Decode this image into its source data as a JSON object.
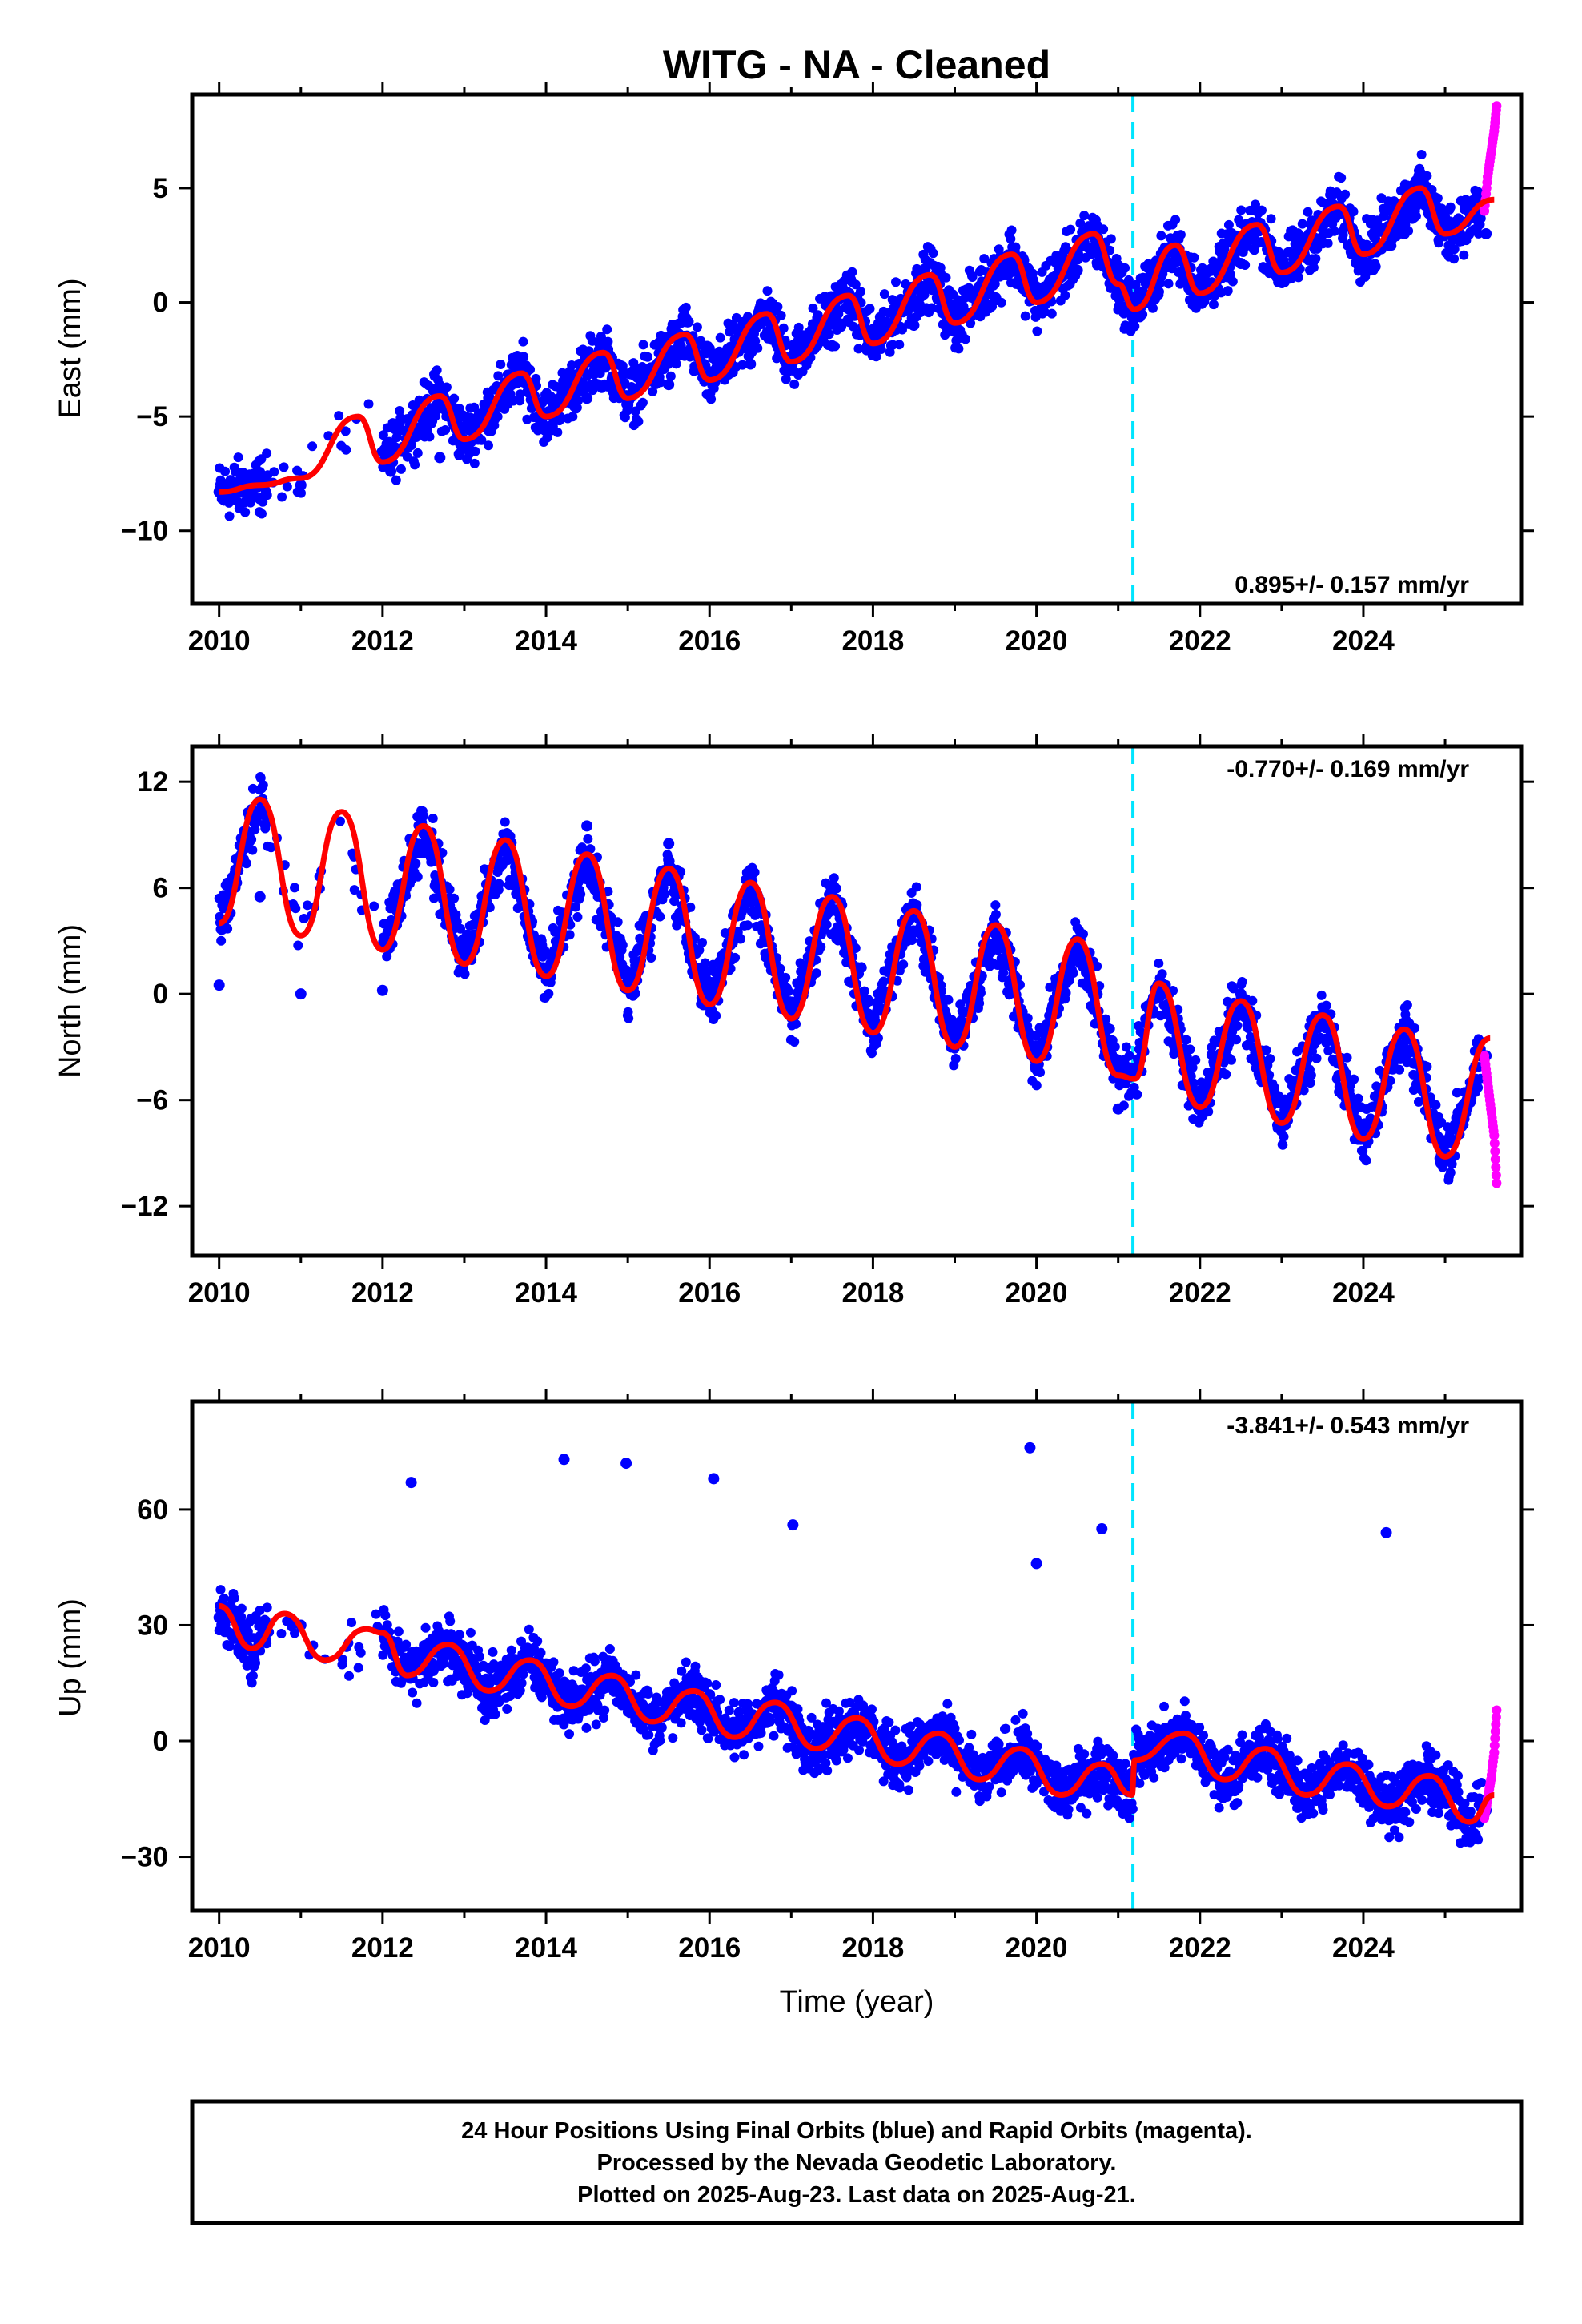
{
  "figure": {
    "title": "WITG  - NA - Cleaned",
    "xlabel": "Time (year)",
    "footer": [
      "24 Hour Positions Using Final Orbits (blue) and Rapid Orbits (magenta).",
      "Processed by the Nevada Geodetic Laboratory.",
      "Plotted on 2025-Aug-23. Last data on 2025-Aug-21."
    ],
    "colors": {
      "final_orbits": "#0000ff",
      "rapid_orbits": "#ff00ff",
      "model_fit": "#ff0000",
      "equipment_change": "#00e5ff"
    }
  },
  "chart_data": [
    {
      "type": "scatter",
      "panel": "east",
      "ylabel": "East (mm)",
      "rate_label": "0.895+/- 0.157 mm/yr",
      "rate_position": "bottom-right",
      "xlim": [
        2009.67,
        2025.93
      ],
      "ylim": [
        -13.2,
        9.1
      ],
      "xticks": [
        2010,
        2012,
        2014,
        2016,
        2018,
        2020,
        2022,
        2024
      ],
      "xtick_labels": [
        "2010",
        "2012",
        "2014",
        "2016",
        "2018",
        "2020",
        "2022",
        "2024"
      ],
      "yticks": [
        5,
        0,
        -5,
        -10
      ],
      "ytick_labels": [
        "5",
        "0",
        "−5",
        "−10"
      ],
      "equipment_change_x": 2021.18,
      "rapid_x_range": [
        2025.46,
        2025.64
      ],
      "series": [
        {
          "series_role": "final_orbits",
          "x": [
            2010.0,
            2010.5,
            2011.0,
            2012.1,
            2012.7,
            2013.3,
            2014.0,
            2014.5,
            2015.0,
            2015.5,
            2016.0,
            2016.5,
            2017.0,
            2017.5,
            2018.0,
            2018.5,
            2019.0,
            2019.5,
            2020.0,
            2020.5,
            2021.0,
            2021.5,
            2022.0,
            2022.5,
            2023.0,
            2023.5,
            2024.0,
            2024.5,
            2025.0,
            2025.5
          ],
          "y": [
            -8.3,
            -8.6,
            -8.0,
            -7.4,
            -6.8,
            -5.6,
            -4.9,
            -4.2,
            -4.5,
            -3.6,
            -3.2,
            -2.7,
            -2.8,
            -1.9,
            -1.6,
            -1.0,
            -0.6,
            0.2,
            0.4,
            1.4,
            1.6,
            0.9,
            1.0,
            1.7,
            1.9,
            2.6,
            2.4,
            3.0,
            3.0,
            3.0
          ]
        },
        {
          "series_role": "rapid_orbits",
          "x": [
            2025.48,
            2025.52,
            2025.56,
            2025.6,
            2025.63
          ],
          "y": [
            4.0,
            5.5,
            6.5,
            7.5,
            8.6
          ]
        },
        {
          "series_role": "model_fit",
          "x": [
            2010.0,
            2010.5,
            2011.0,
            2011.7,
            2012.0,
            2012.7,
            2013.0,
            2013.7,
            2014.0,
            2014.7,
            2015.0,
            2015.7,
            2016.0,
            2016.7,
            2017.0,
            2017.7,
            2018.0,
            2018.7,
            2019.0,
            2019.7,
            2020.0,
            2020.7,
            2021.0,
            2021.2,
            2021.7,
            2022.0,
            2022.7,
            2023.0,
            2023.7,
            2024.0,
            2024.7,
            2025.0,
            2025.6
          ],
          "y": [
            -8.3,
            -8.0,
            -7.7,
            -5.0,
            -7.0,
            -4.1,
            -6.0,
            -3.1,
            -5.0,
            -2.2,
            -4.2,
            -1.4,
            -3.4,
            -0.5,
            -2.6,
            0.3,
            -1.8,
            1.2,
            -0.9,
            2.1,
            0.0,
            3.0,
            0.8,
            -0.3,
            2.5,
            0.4,
            3.4,
            1.3,
            4.2,
            2.1,
            5.0,
            3.0,
            4.5
          ]
        }
      ]
    },
    {
      "type": "scatter",
      "panel": "north",
      "ylabel": "North (mm)",
      "rate_label": "-0.770+/- 0.169 mm/yr",
      "rate_position": "top-right",
      "xlim": [
        2009.67,
        2025.93
      ],
      "ylim": [
        -14.8,
        14.0
      ],
      "xticks": [
        2010,
        2012,
        2014,
        2016,
        2018,
        2020,
        2022,
        2024
      ],
      "xtick_labels": [
        "2010",
        "2012",
        "2014",
        "2016",
        "2018",
        "2020",
        "2022",
        "2024"
      ],
      "yticks": [
        12,
        6,
        0,
        -6,
        -12
      ],
      "ytick_labels": [
        "12",
        "6",
        "0",
        "−6",
        "−12"
      ],
      "equipment_change_x": 2021.18,
      "rapid_x_range": [
        2025.46,
        2025.64
      ],
      "series": [
        {
          "series_role": "final_orbits",
          "x": [
            2010.0,
            2010.5,
            2011.0,
            2012.0,
            2012.5,
            2013.0,
            2013.5,
            2014.0,
            2014.5,
            2015.0,
            2015.5,
            2016.0,
            2016.5,
            2017.0,
            2017.5,
            2018.0,
            2018.5,
            2019.0,
            2019.5,
            2020.0,
            2020.5,
            2021.0,
            2021.5,
            2022.0,
            2022.5,
            2023.0,
            2023.5,
            2024.0,
            2024.5,
            2025.0,
            2025.5
          ],
          "y": [
            0.5,
            5.5,
            0.0,
            0.2,
            8.0,
            2.0,
            8.5,
            1.0,
            9.5,
            0.5,
            8.5,
            0.0,
            7.0,
            -1.0,
            5.5,
            -1.8,
            4.5,
            -2.8,
            3.5,
            -3.5,
            2.5,
            -6.5,
            0.5,
            -6.0,
            0.0,
            -7.0,
            -1.5,
            -8.0,
            -2.0,
            -9.0,
            -3.5
          ]
        },
        {
          "series_role": "rapid_orbits",
          "x": [
            2025.48,
            2025.52,
            2025.56,
            2025.6,
            2025.63
          ],
          "y": [
            -3.5,
            -5.0,
            -6.5,
            -8.0,
            -10.7
          ]
        },
        {
          "series_role": "model_fit",
          "x": [
            2010.0,
            2010.5,
            2011.0,
            2011.5,
            2012.0,
            2012.5,
            2013.0,
            2013.5,
            2014.0,
            2014.5,
            2015.0,
            2015.5,
            2016.0,
            2016.5,
            2017.0,
            2017.5,
            2018.0,
            2018.5,
            2019.0,
            2019.5,
            2020.0,
            2020.5,
            2021.0,
            2021.2,
            2021.5,
            2022.0,
            2022.5,
            2023.0,
            2023.5,
            2024.0,
            2024.5,
            2025.0,
            2025.55
          ],
          "y": [
            4.0,
            11.0,
            3.3,
            10.3,
            2.5,
            9.5,
            1.7,
            8.7,
            1.0,
            7.9,
            0.2,
            7.1,
            -0.6,
            6.3,
            -1.4,
            5.5,
            -2.2,
            4.7,
            -3.0,
            3.9,
            -3.8,
            3.1,
            -4.6,
            -4.8,
            0.6,
            -6.4,
            -0.4,
            -7.3,
            -1.2,
            -8.2,
            -2.0,
            -9.2,
            -2.5
          ]
        }
      ]
    },
    {
      "type": "scatter",
      "panel": "up",
      "ylabel": "Up (mm)",
      "rate_label": "-3.841+/- 0.543 mm/yr",
      "rate_position": "top-right",
      "xlim": [
        2009.67,
        2025.93
      ],
      "ylim": [
        -44,
        88
      ],
      "xticks": [
        2010,
        2012,
        2014,
        2016,
        2018,
        2020,
        2022,
        2024
      ],
      "xtick_labels": [
        "2010",
        "2012",
        "2014",
        "2016",
        "2018",
        "2020",
        "2022",
        "2024"
      ],
      "yticks": [
        60,
        30,
        0,
        -30
      ],
      "ytick_labels": [
        "60",
        "30",
        "0",
        "−30"
      ],
      "equipment_change_x": 2021.18,
      "rapid_x_range": [
        2025.46,
        2025.64
      ],
      "series": [
        {
          "series_role": "final_orbits",
          "x": [
            2010.0,
            2010.5,
            2011.0,
            2012.1,
            2012.8,
            2013.3,
            2014.0,
            2014.5,
            2015.0,
            2015.5,
            2016.0,
            2016.5,
            2017.0,
            2017.5,
            2018.0,
            2018.5,
            2019.0,
            2019.5,
            2020.0,
            2020.5,
            2021.0,
            2021.5,
            2022.0,
            2022.5,
            2023.0,
            2023.5,
            2024.0,
            2024.5,
            2025.0,
            2025.5,
            2012.35,
            2014.22,
            2014.98,
            2016.05,
            2017.02,
            2019.92,
            2020.0,
            2020.8,
            2024.28
          ],
          "y": [
            32.0,
            27.0,
            30.0,
            24.0,
            27.0,
            15.0,
            20.0,
            10.0,
            16.0,
            7.0,
            12.0,
            4.0,
            9.0,
            1.0,
            5.0,
            -3.0,
            1.0,
            -8.0,
            -5.0,
            -12.0,
            -6.0,
            -4.0,
            -3.0,
            -6.0,
            -3.0,
            -9.0,
            -7.0,
            -11.0,
            -10.0,
            -18.0,
            67.0,
            73.0,
            72.0,
            68.0,
            56.0,
            76.0,
            46.0,
            55.0,
            54.0
          ]
        },
        {
          "series_role": "rapid_orbits",
          "x": [
            2025.48,
            2025.52,
            2025.56,
            2025.6,
            2025.63
          ],
          "y": [
            -20.0,
            -15.0,
            -10.0,
            -3.0,
            8.0
          ]
        },
        {
          "series_role": "model_fit",
          "x": [
            2010.0,
            2010.4,
            2010.8,
            2011.3,
            2011.8,
            2012.0,
            2012.3,
            2012.8,
            2013.3,
            2013.8,
            2014.3,
            2014.8,
            2015.3,
            2015.8,
            2016.3,
            2016.8,
            2017.3,
            2017.8,
            2018.3,
            2018.8,
            2019.3,
            2019.8,
            2020.3,
            2020.8,
            2021.17,
            2021.2,
            2021.8,
            2022.3,
            2022.8,
            2023.3,
            2023.8,
            2024.3,
            2024.8,
            2025.3,
            2025.6
          ],
          "y": [
            35.0,
            24.0,
            33.0,
            21.0,
            29.0,
            28.0,
            17.0,
            25.0,
            13.0,
            21.0,
            9.0,
            17.0,
            5.0,
            13.0,
            1.0,
            10.0,
            -2.0,
            6.0,
            -6.0,
            2.0,
            -10.0,
            -2.0,
            -14.0,
            -6.0,
            -14.0,
            -5.0,
            2.0,
            -10.0,
            -2.0,
            -14.0,
            -6.0,
            -17.0,
            -9.0,
            -21.0,
            -14.0
          ]
        }
      ]
    }
  ]
}
